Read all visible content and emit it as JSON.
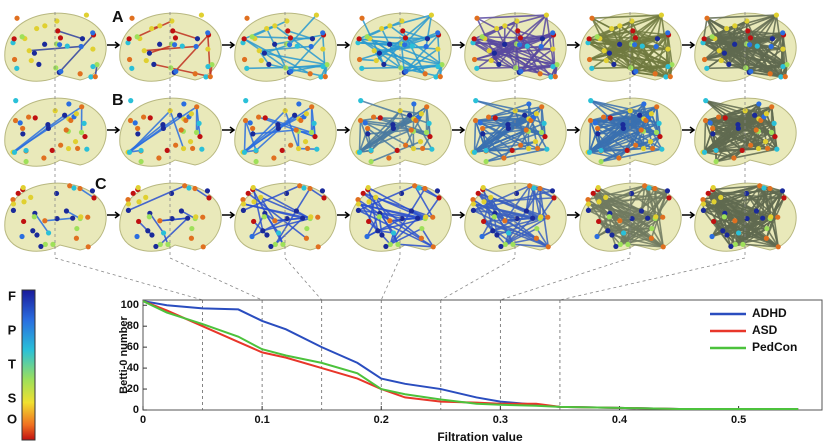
{
  "chart_data": {
    "type": "line",
    "xlabel": "Filtration value",
    "ylabel": "Betti-0 number",
    "panel_labels": [
      "A",
      "B",
      "C"
    ],
    "colorbar_labels": [
      "F",
      "P",
      "T",
      "S",
      "O"
    ],
    "thresholds": [
      0.05,
      0.1,
      0.15,
      0.2,
      0.25,
      0.3,
      0.35
    ],
    "x": [
      0,
      0.02,
      0.05,
      0.08,
      0.1,
      0.12,
      0.15,
      0.18,
      0.2,
      0.22,
      0.25,
      0.28,
      0.3,
      0.33,
      0.35,
      0.4,
      0.45,
      0.5,
      0.55
    ],
    "series": [
      {
        "name": "ADHD",
        "color": "#2a4dbf",
        "values": [
          104,
          100,
          97,
          96,
          85,
          77,
          60,
          45,
          30,
          25,
          20,
          12,
          8,
          5,
          3,
          2,
          1,
          1,
          1
        ]
      },
      {
        "name": "ASD",
        "color": "#e8362a",
        "values": [
          104,
          95,
          80,
          65,
          55,
          50,
          40,
          30,
          20,
          12,
          8,
          7,
          6,
          6,
          3,
          2,
          1,
          1,
          1
        ]
      },
      {
        "name": "PedCon",
        "color": "#4cc23c",
        "values": [
          104,
          93,
          82,
          70,
          58,
          52,
          45,
          35,
          20,
          15,
          10,
          6,
          5,
          4,
          3,
          2,
          1,
          1,
          1
        ]
      }
    ],
    "xlim": [
      0,
      0.57
    ],
    "ylim": [
      0,
      105
    ],
    "xticks": [
      0,
      0.1,
      0.2,
      0.3,
      0.4,
      0.5
    ],
    "yticks": [
      0,
      20,
      40,
      60,
      80,
      100
    ],
    "legend": "upper right"
  }
}
